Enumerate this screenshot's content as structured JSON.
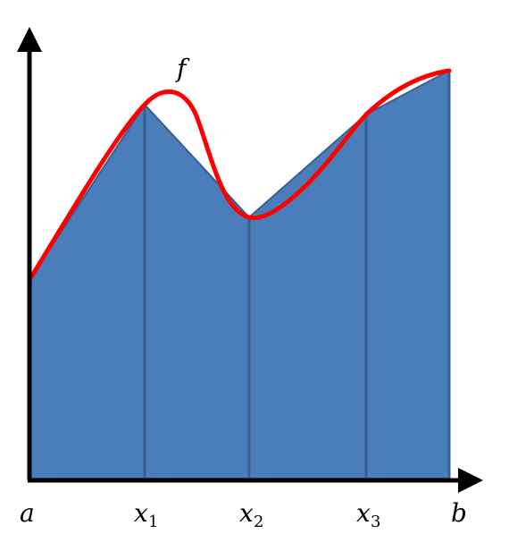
{
  "function_label": "f",
  "x_labels": {
    "a": "a",
    "x1_main": "x",
    "x1_sub": "1",
    "x2_main": "x",
    "x2_sub": "2",
    "x3_main": "x",
    "x3_sub": "3",
    "b": "b"
  },
  "colors": {
    "trapezoid_fill": "#4a7ebb",
    "trapezoid_stroke": "#3a5f8f",
    "curve": "#ff0000",
    "axes": "#000000"
  },
  "icons": {
    "x_axis_arrow": "arrowhead-right",
    "y_axis_arrow": "arrowhead-up"
  }
}
